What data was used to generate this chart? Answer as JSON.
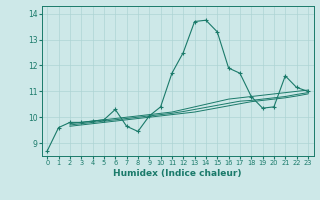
{
  "xlabel": "Humidex (Indice chaleur)",
  "ylabel": "",
  "background_color": "#cde8e8",
  "line_color": "#1a7a6a",
  "grid_color": "#aed4d4",
  "xlim": [
    -0.5,
    23.5
  ],
  "ylim": [
    8.5,
    14.3
  ],
  "yticks": [
    9,
    10,
    11,
    12,
    13,
    14
  ],
  "xticks": [
    0,
    1,
    2,
    3,
    4,
    5,
    6,
    7,
    8,
    9,
    10,
    11,
    12,
    13,
    14,
    15,
    16,
    17,
    18,
    19,
    20,
    21,
    22,
    23
  ],
  "lines": [
    {
      "x": [
        0,
        1,
        2,
        3,
        4,
        5,
        6,
        7,
        8,
        9,
        10,
        11,
        12,
        13,
        14,
        15,
        16,
        17,
        18,
        19,
        20,
        21,
        22,
        23
      ],
      "y": [
        8.7,
        9.6,
        9.8,
        9.8,
        9.85,
        9.9,
        10.3,
        9.65,
        9.45,
        10.05,
        10.4,
        11.7,
        12.5,
        13.7,
        13.75,
        13.3,
        11.9,
        11.7,
        10.8,
        10.35,
        10.4,
        11.6,
        11.15,
        11.0
      ],
      "marker": true
    },
    {
      "x": [
        2,
        3,
        4,
        5,
        6,
        7,
        8,
        9,
        10,
        11,
        12,
        13,
        14,
        15,
        16,
        17,
        18,
        19,
        20,
        21,
        22,
        23
      ],
      "y": [
        9.75,
        9.8,
        9.85,
        9.9,
        9.95,
        10.0,
        10.05,
        10.1,
        10.15,
        10.2,
        10.3,
        10.4,
        10.5,
        10.6,
        10.7,
        10.75,
        10.8,
        10.85,
        10.9,
        10.95,
        11.0,
        11.05
      ],
      "marker": false
    },
    {
      "x": [
        2,
        3,
        4,
        5,
        6,
        7,
        8,
        9,
        10,
        11,
        12,
        13,
        14,
        15,
        16,
        17,
        18,
        19,
        20,
        21,
        22,
        23
      ],
      "y": [
        9.7,
        9.75,
        9.8,
        9.85,
        9.9,
        9.95,
        10.0,
        10.05,
        10.1,
        10.15,
        10.22,
        10.3,
        10.38,
        10.46,
        10.54,
        10.62,
        10.65,
        10.7,
        10.75,
        10.8,
        10.88,
        10.95
      ],
      "marker": false
    },
    {
      "x": [
        2,
        3,
        4,
        5,
        6,
        7,
        8,
        9,
        10,
        11,
        12,
        13,
        14,
        15,
        16,
        17,
        18,
        19,
        20,
        21,
        22,
        23
      ],
      "y": [
        9.65,
        9.7,
        9.75,
        9.8,
        9.85,
        9.9,
        9.95,
        10.0,
        10.05,
        10.1,
        10.15,
        10.2,
        10.28,
        10.36,
        10.44,
        10.52,
        10.6,
        10.65,
        10.7,
        10.75,
        10.82,
        10.9
      ],
      "marker": false
    }
  ]
}
